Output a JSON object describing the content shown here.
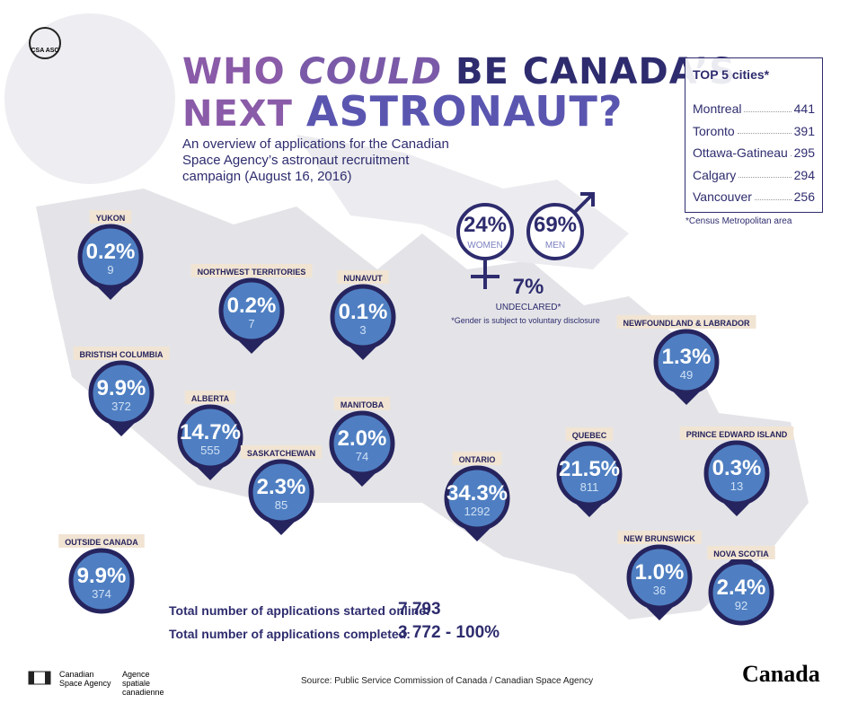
{
  "header": {
    "logo": "CSA ASC",
    "title": {
      "who": "WHO",
      "could": "COULD",
      "be": "BE CANADA’S",
      "next": "NEXT",
      "astronaut": "ASTRONAUT?"
    },
    "subtitle": "An overview of applications for the Canadian Space Agency’s astronaut recruitment campaign (August 16, 2016)"
  },
  "top_cities": {
    "title": "TOP 5 cities*",
    "rows": [
      [
        "Montreal",
        "441"
      ],
      [
        "Toronto",
        "391"
      ],
      [
        "Ottawa-Gatineau",
        "295"
      ],
      [
        "Calgary",
        "294"
      ],
      [
        "Vancouver",
        "256"
      ]
    ],
    "note": "*Census Metropolitan area"
  },
  "gender": {
    "women": {
      "percent": "24%",
      "label": "WOMEN"
    },
    "men": {
      "percent": "69%",
      "label": "MEN"
    },
    "undeclared": {
      "percent": "7%",
      "label": "UNDECLARED*"
    },
    "note": "*Gender is subject to voluntary disclosure"
  },
  "regions": [
    {
      "name": "YUKON",
      "percent": "0.2%",
      "count": "9"
    },
    {
      "name": "NORTHWEST TERRITORIES",
      "percent": "0.2%",
      "count": "7"
    },
    {
      "name": "NUNAVUT",
      "percent": "0.1%",
      "count": "3"
    },
    {
      "name": "BRISTISH COLUMBIA",
      "percent": "9.9%",
      "count": "372"
    },
    {
      "name": "ALBERTA",
      "percent": "14.7%",
      "count": "555"
    },
    {
      "name": "SASKATCHEWAN",
      "percent": "2.3%",
      "count": "85"
    },
    {
      "name": "MANITOBA",
      "percent": "2.0%",
      "count": "74"
    },
    {
      "name": "NEWFOUNDLAND & LABRADOR",
      "percent": "1.3%",
      "count": "49"
    },
    {
      "name": "ONTARIO",
      "percent": "34.3%",
      "count": "1292"
    },
    {
      "name": "QUEBEC",
      "percent": "21.5%",
      "count": "811"
    },
    {
      "name": "PRINCE EDWARD ISLAND",
      "percent": "0.3%",
      "count": "13"
    },
    {
      "name": "NEW BRUNSWICK",
      "percent": "1.0%",
      "count": "36"
    },
    {
      "name": "NOVA SCOTIA",
      "percent": "2.4%",
      "count": "92"
    },
    {
      "name": "OUTSIDE CANADA",
      "percent": "9.9%",
      "count": "374"
    }
  ],
  "totals": [
    {
      "label": "Total number of applications started online:",
      "value": "7 793"
    },
    {
      "label": "Total number of applications completed:",
      "value": "3 772 - 100%"
    }
  ],
  "footer": {
    "agency_en": "Canadian Space Agency",
    "agency_fr": "Agence spatiale canadienne",
    "source": "Source: Public Service Commission of Canada / Canadian Space Agency",
    "wordmark": "Canada"
  }
}
